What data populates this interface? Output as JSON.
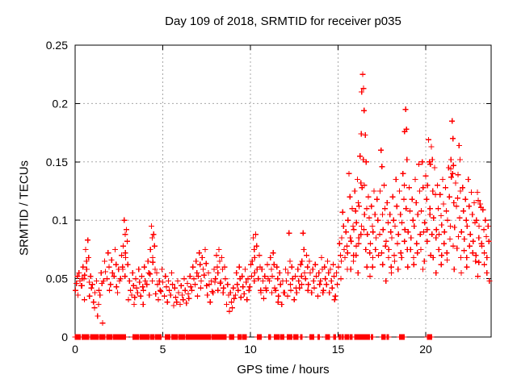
{
  "chart_data": {
    "type": "scatter",
    "title": "Day 109 of 2018, SRMTID for receiver p035",
    "xlabel": "GPS time / hours",
    "ylabel": "SRMTID / TECUs",
    "xlim": [
      0,
      23.73
    ],
    "ylim": [
      0,
      0.25
    ],
    "xticks": [
      {
        "v": 0,
        "label": "0"
      },
      {
        "v": 5,
        "label": "5"
      },
      {
        "v": 10,
        "label": "10"
      },
      {
        "v": 15,
        "label": "15"
      },
      {
        "v": 20,
        "label": "20"
      }
    ],
    "yticks": [
      {
        "v": 0,
        "label": "0"
      },
      {
        "v": 0.05,
        "label": "0.05"
      },
      {
        "v": 0.1,
        "label": "0.1"
      },
      {
        "v": 0.15,
        "label": "0.15"
      },
      {
        "v": 0.2,
        "label": "0.2"
      },
      {
        "v": 0.25,
        "label": "0.25"
      }
    ],
    "grid": true,
    "grid_color": "#a8a8a8",
    "marker": {
      "shape": "plus",
      "color": "#ff0000",
      "size": 7
    },
    "point_columns": [
      [
        0.08,
        [
          0.046,
          0.052,
          0.04
        ]
      ],
      [
        0.22,
        [
          0.055,
          0.048,
          0.036
        ]
      ],
      [
        0.35,
        [
          0.044,
          0.05
        ]
      ],
      [
        0.45,
        [
          0.06,
          0.05,
          0.044,
          0.032
        ]
      ],
      [
        0.6,
        [
          0.075,
          0.065,
          0.053
        ]
      ],
      [
        0.72,
        [
          0.083,
          0.068,
          0.058,
          0.047
        ]
      ],
      [
        0.88,
        [
          0.052,
          0.042,
          0.035
        ]
      ],
      [
        1.05,
        [
          0.03,
          0.025,
          0.045,
          0.038
        ]
      ],
      [
        1.28,
        [
          0.018,
          0.028,
          0.048,
          0.04
        ]
      ],
      [
        1.48,
        [
          0.055,
          0.046,
          0.036,
          0.012
        ]
      ],
      [
        1.68,
        [
          0.065,
          0.056,
          0.048
        ]
      ],
      [
        1.88,
        [
          0.072,
          0.06,
          0.05,
          0.04
        ]
      ],
      [
        2.08,
        [
          0.066,
          0.055,
          0.045
        ]
      ],
      [
        2.28,
        [
          0.075,
          0.062,
          0.052,
          0.043
        ]
      ],
      [
        2.48,
        [
          0.058,
          0.048,
          0.038
        ]
      ],
      [
        2.65,
        [
          0.07,
          0.06,
          0.05
        ]
      ],
      [
        2.8,
        [
          0.1,
          0.088,
          0.078,
          0.068,
          0.058
        ]
      ],
      [
        2.92,
        [
          0.092,
          0.082,
          0.072,
          0.062,
          0.052
        ]
      ],
      [
        3.1,
        [
          0.048,
          0.04,
          0.032
        ]
      ],
      [
        3.28,
        [
          0.055,
          0.044,
          0.036,
          0.028
        ]
      ],
      [
        3.45,
        [
          0.05,
          0.042,
          0.034
        ]
      ],
      [
        3.62,
        [
          0.058,
          0.047,
          0.038
        ]
      ],
      [
        3.8,
        [
          0.052,
          0.043,
          0.035,
          0.028
        ]
      ],
      [
        3.95,
        [
          0.06,
          0.048,
          0.04
        ]
      ],
      [
        4.15,
        [
          0.065,
          0.055,
          0.045,
          0.036
        ]
      ],
      [
        4.35,
        [
          0.095,
          0.085,
          0.075,
          0.064,
          0.054
        ]
      ],
      [
        4.48,
        [
          0.088,
          0.078,
          0.068,
          0.058,
          0.048
        ]
      ],
      [
        4.65,
        [
          0.055,
          0.045,
          0.037
        ]
      ],
      [
        4.8,
        [
          0.048,
          0.04,
          0.032
        ]
      ],
      [
        4.95,
        [
          0.058,
          0.047,
          0.039
        ]
      ],
      [
        5.15,
        [
          0.052,
          0.043,
          0.035
        ]
      ],
      [
        5.32,
        [
          0.048,
          0.04,
          0.03
        ]
      ],
      [
        5.5,
        [
          0.055,
          0.045,
          0.036
        ]
      ],
      [
        5.68,
        [
          0.042,
          0.034,
          0.027
        ]
      ],
      [
        5.85,
        [
          0.048,
          0.038,
          0.03
        ]
      ],
      [
        6.05,
        [
          0.044,
          0.036,
          0.028
        ]
      ],
      [
        6.22,
        [
          0.05,
          0.04,
          0.032
        ]
      ],
      [
        6.4,
        [
          0.046,
          0.037,
          0.029
        ]
      ],
      [
        6.55,
        [
          0.052,
          0.043,
          0.033
        ]
      ],
      [
        6.72,
        [
          0.06,
          0.05,
          0.04
        ]
      ],
      [
        6.9,
        [
          0.065,
          0.055,
          0.045,
          0.035
        ]
      ],
      [
        7.08,
        [
          0.072,
          0.062,
          0.052,
          0.042
        ]
      ],
      [
        7.25,
        [
          0.068,
          0.058,
          0.048
        ]
      ],
      [
        7.42,
        [
          0.075,
          0.063,
          0.053,
          0.044
        ]
      ],
      [
        7.6,
        [
          0.055,
          0.045,
          0.036
        ]
      ],
      [
        7.76,
        [
          0.048,
          0.039,
          0.03
        ]
      ],
      [
        7.92,
        [
          0.058,
          0.047,
          0.038
        ]
      ],
      [
        8.06,
        [
          0.07,
          0.06,
          0.05,
          0.04
        ]
      ],
      [
        8.2,
        [
          0.075,
          0.065,
          0.055,
          0.046
        ]
      ],
      [
        8.36,
        [
          0.068,
          0.058,
          0.047,
          0.038
        ]
      ],
      [
        8.52,
        [
          0.06,
          0.05,
          0.042
        ]
      ],
      [
        8.7,
        [
          0.045,
          0.036,
          0.028
        ]
      ],
      [
        8.86,
        [
          0.038,
          0.03,
          0.022
        ]
      ],
      [
        9.02,
        [
          0.042,
          0.033,
          0.025
        ]
      ],
      [
        9.2,
        [
          0.055,
          0.045,
          0.036
        ]
      ],
      [
        9.36,
        [
          0.06,
          0.05,
          0.04
        ]
      ],
      [
        9.52,
        [
          0.052,
          0.043,
          0.034
        ]
      ],
      [
        9.7,
        [
          0.058,
          0.047,
          0.037
        ]
      ],
      [
        9.86,
        [
          0.05,
          0.04,
          0.032
        ]
      ],
      [
        10.02,
        [
          0.062,
          0.052,
          0.043
        ]
      ],
      [
        10.16,
        [
          0.085,
          0.075,
          0.065,
          0.055
        ]
      ],
      [
        10.3,
        [
          0.088,
          0.078,
          0.068,
          0.058,
          0.048
        ]
      ],
      [
        10.5,
        [
          0.07,
          0.06,
          0.05,
          0.04
        ]
      ],
      [
        10.66,
        [
          0.058,
          0.048,
          0.038
        ]
      ],
      [
        10.82,
        [
          0.052,
          0.042,
          0.033
        ]
      ],
      [
        10.96,
        [
          0.062,
          0.05,
          0.04
        ]
      ],
      [
        11.14,
        [
          0.068,
          0.058,
          0.048,
          0.038
        ]
      ],
      [
        11.3,
        [
          0.072,
          0.062,
          0.052,
          0.042
        ]
      ],
      [
        11.5,
        [
          0.06,
          0.05,
          0.04,
          0.03
        ]
      ],
      [
        11.66,
        [
          0.055,
          0.045,
          0.035
        ]
      ],
      [
        11.84,
        [
          0.048,
          0.038,
          0.028
        ]
      ],
      [
        12.0,
        [
          0.058,
          0.048,
          0.038
        ]
      ],
      [
        12.2,
        [
          0.089,
          0.065,
          0.055,
          0.045,
          0.035
        ]
      ],
      [
        12.36,
        [
          0.06,
          0.05,
          0.04
        ]
      ],
      [
        12.55,
        [
          0.052,
          0.042,
          0.032
        ]
      ],
      [
        12.7,
        [
          0.058,
          0.048,
          0.038
        ]
      ],
      [
        12.86,
        [
          0.062,
          0.052,
          0.042
        ]
      ],
      [
        13.0,
        [
          0.089,
          0.075,
          0.065,
          0.055,
          0.045
        ]
      ],
      [
        13.2,
        [
          0.07,
          0.06,
          0.05,
          0.04
        ]
      ],
      [
        13.36,
        [
          0.065,
          0.055,
          0.045
        ]
      ],
      [
        13.55,
        [
          0.058,
          0.048,
          0.038
        ]
      ],
      [
        13.7,
        [
          0.062,
          0.052,
          0.042
        ]
      ],
      [
        13.9,
        [
          0.055,
          0.045,
          0.035
        ]
      ],
      [
        14.05,
        [
          0.068,
          0.058,
          0.048,
          0.038
        ]
      ],
      [
        14.22,
        [
          0.06,
          0.05,
          0.04
        ]
      ],
      [
        14.4,
        [
          0.065,
          0.055,
          0.045
        ]
      ],
      [
        14.56,
        [
          0.058,
          0.048,
          0.038
        ]
      ],
      [
        14.72,
        [
          0.062,
          0.052,
          0.042,
          0.032
        ]
      ],
      [
        14.9,
        [
          0.055,
          0.045,
          0.035
        ]
      ],
      [
        15.08,
        [
          0.08,
          0.07,
          0.06,
          0.05
        ]
      ],
      [
        15.26,
        [
          0.107,
          0.095,
          0.085,
          0.075,
          0.065
        ]
      ],
      [
        15.45,
        [
          0.09,
          0.078,
          0.068,
          0.058
        ]
      ],
      [
        15.62,
        [
          0.14,
          0.12,
          0.1,
          0.085,
          0.072
        ]
      ],
      [
        15.8,
        [
          0.11,
          0.095,
          0.082,
          0.07,
          0.058
        ]
      ],
      [
        15.95,
        [
          0.125,
          0.108,
          0.092,
          0.078,
          0.065
        ]
      ],
      [
        16.1,
        [
          0.135,
          0.115,
          0.098,
          0.085,
          0.07,
          0.055
        ]
      ],
      [
        16.25,
        [
          0.155,
          0.132,
          0.112,
          0.095,
          0.08
        ]
      ],
      [
        16.4,
        [
          0.225,
          0.213,
          0.21,
          0.194,
          0.174,
          0.152,
          0.128,
          0.105,
          0.088
        ]
      ],
      [
        16.55,
        [
          0.173,
          0.15,
          0.13,
          0.11,
          0.092,
          0.075
        ]
      ],
      [
        16.72,
        [
          0.12,
          0.102,
          0.088,
          0.072,
          0.06
        ]
      ],
      [
        16.9,
        [
          0.112,
          0.095,
          0.08,
          0.068,
          0.052
        ]
      ],
      [
        17.05,
        [
          0.125,
          0.105,
          0.09,
          0.075,
          0.06
        ]
      ],
      [
        17.22,
        [
          0.118,
          0.1,
          0.085,
          0.07
        ]
      ],
      [
        17.45,
        [
          0.16,
          0.146,
          0.125,
          0.105,
          0.088,
          0.072
        ]
      ],
      [
        17.62,
        [
          0.13,
          0.11,
          0.092,
          0.078,
          0.062
        ]
      ],
      [
        17.8,
        [
          0.115,
          0.098,
          0.082,
          0.068,
          0.048
        ]
      ],
      [
        17.95,
        [
          0.105,
          0.09,
          0.075,
          0.06
        ]
      ],
      [
        18.12,
        [
          0.12,
          0.1,
          0.085,
          0.07,
          0.055
        ]
      ],
      [
        18.3,
        [
          0.135,
          0.112,
          0.095,
          0.08,
          0.065
        ]
      ],
      [
        18.5,
        [
          0.125,
          0.105,
          0.088,
          0.072,
          0.058
        ]
      ],
      [
        18.7,
        [
          0.14,
          0.118,
          0.098,
          0.082,
          0.068
        ]
      ],
      [
        18.85,
        [
          0.195,
          0.178,
          0.176,
          0.152,
          0.13,
          0.11,
          0.092,
          0.075
        ]
      ],
      [
        19.05,
        [
          0.128,
          0.108,
          0.09,
          0.075,
          0.06
        ]
      ],
      [
        19.22,
        [
          0.118,
          0.1,
          0.085,
          0.068
        ]
      ],
      [
        19.4,
        [
          0.135,
          0.115,
          0.095,
          0.08,
          0.062
        ]
      ],
      [
        19.6,
        [
          0.148,
          0.125,
          0.105,
          0.088,
          0.072
        ]
      ],
      [
        19.8,
        [
          0.15,
          0.128,
          0.108,
          0.09,
          0.075,
          0.058
        ]
      ],
      [
        20.0,
        [
          0.138,
          0.118,
          0.098,
          0.082,
          0.065
        ]
      ],
      [
        20.16,
        [
          0.169,
          0.15,
          0.13,
          0.11,
          0.092
        ]
      ],
      [
        20.32,
        [
          0.163,
          0.152,
          0.148,
          0.125,
          0.105,
          0.088,
          0.07
        ]
      ],
      [
        20.5,
        [
          0.145,
          0.122,
          0.102,
          0.085,
          0.068
        ]
      ],
      [
        20.66,
        [
          0.13,
          0.11,
          0.092,
          0.075,
          0.055
        ]
      ],
      [
        20.82,
        [
          0.122,
          0.104,
          0.088,
          0.07
        ]
      ],
      [
        20.96,
        [
          0.135,
          0.114,
          0.096,
          0.08,
          0.062
        ]
      ],
      [
        21.12,
        [
          0.128,
          0.108,
          0.09,
          0.072
        ]
      ],
      [
        21.3,
        [
          0.145,
          0.12,
          0.1,
          0.084,
          0.066
        ]
      ],
      [
        21.5,
        [
          0.185,
          0.17,
          0.152,
          0.147,
          0.144,
          0.14,
          0.137,
          0.115,
          0.095,
          0.078
        ]
      ],
      [
        21.7,
        [
          0.132,
          0.112,
          0.094,
          0.076,
          0.058
        ]
      ],
      [
        21.9,
        [
          0.164,
          0.152,
          0.139,
          0.125,
          0.119,
          0.102,
          0.086,
          0.068
        ]
      ],
      [
        22.1,
        [
          0.128,
          0.108,
          0.09,
          0.074,
          0.055
        ]
      ],
      [
        22.26,
        [
          0.118,
          0.1,
          0.084,
          0.068
        ]
      ],
      [
        22.42,
        [
          0.135,
          0.112,
          0.095,
          0.078,
          0.06
        ]
      ],
      [
        22.6,
        [
          0.124,
          0.105,
          0.088,
          0.072
        ]
      ],
      [
        22.76,
        [
          0.115,
          0.098,
          0.082,
          0.065
        ]
      ],
      [
        22.94,
        [
          0.124,
          0.117,
          0.1,
          0.085,
          0.07,
          0.052
        ]
      ],
      [
        23.1,
        [
          0.114,
          0.111,
          0.095,
          0.08,
          0.064
        ]
      ],
      [
        23.26,
        [
          0.109,
          0.092,
          0.078,
          0.062
        ]
      ],
      [
        23.4,
        [
          0.1,
          0.086,
          0.072,
          0.055
        ]
      ],
      [
        23.55,
        [
          0.095,
          0.082,
          0.068,
          0.048
        ]
      ]
    ],
    "zero_runs": [
      [
        0,
        0.3
      ],
      [
        0.4,
        0.78
      ],
      [
        0.87,
        1.32
      ],
      [
        1.4,
        1.7
      ],
      [
        1.8,
        2.1
      ],
      [
        2.2,
        2.88
      ],
      [
        3.3,
        3.62
      ],
      [
        3.72,
        4.2
      ],
      [
        4.28,
        4.5
      ],
      [
        4.6,
        4.9
      ],
      [
        5.15,
        5.4
      ],
      [
        5.5,
        5.84
      ],
      [
        5.92,
        6.25
      ],
      [
        6.33,
        6.85
      ],
      [
        6.92,
        7.7
      ],
      [
        7.8,
        8.6
      ],
      [
        8.8,
        9.05
      ],
      [
        9.3,
        9.48
      ],
      [
        9.56,
        9.75
      ],
      [
        10.4,
        10.62
      ],
      [
        11.05,
        11.15
      ],
      [
        11.36,
        11.63
      ],
      [
        11.7,
        11.9
      ],
      [
        12.1,
        12.37
      ],
      [
        12.46,
        12.7
      ],
      [
        12.86,
        12.94
      ],
      [
        13.4,
        13.6
      ],
      [
        13.86,
        13.94
      ],
      [
        14.3,
        14.38
      ],
      [
        14.44,
        14.5
      ],
      [
        14.76,
        14.84
      ],
      [
        15.06,
        15.12
      ],
      [
        15.2,
        15.3
      ],
      [
        15.4,
        15.48
      ],
      [
        15.54,
        15.6
      ],
      [
        15.7,
        15.8
      ],
      [
        15.95,
        16.3
      ],
      [
        16.35,
        16.55
      ],
      [
        16.6,
        16.78
      ],
      [
        16.9,
        16.98
      ],
      [
        17.5,
        17.58
      ],
      [
        17.62,
        17.68
      ],
      [
        17.8,
        17.88
      ],
      [
        18.5,
        18.76
      ],
      [
        20.1,
        20.33
      ]
    ],
    "zero_run_step": 0.05
  }
}
